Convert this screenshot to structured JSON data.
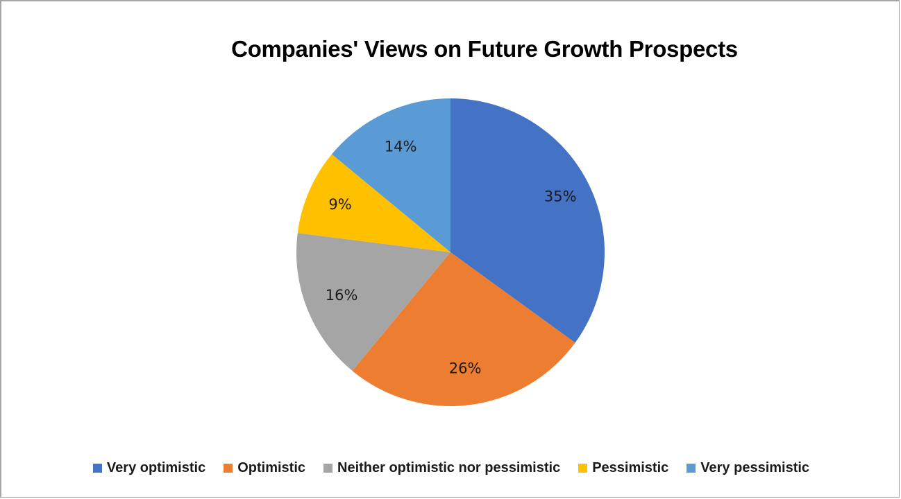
{
  "chart_data": {
    "type": "pie",
    "title": "Companies' Views on Future Growth Prospects",
    "categories": [
      "Very optimistic",
      "Optimistic",
      "Neither optimistic nor pessimistic",
      "Pessimistic",
      "Very pessimistic"
    ],
    "values": [
      35,
      26,
      16,
      9,
      14
    ],
    "labels": [
      "35%",
      "26%",
      "16%",
      "9%",
      "14%"
    ],
    "colors": [
      "#4472c4",
      "#ed7d31",
      "#a5a5a5",
      "#ffc000",
      "#5b9bd5"
    ],
    "start_angle": "12 o'clock",
    "direction": "clockwise",
    "legend_position": "bottom"
  },
  "legend": [
    {
      "label": "Very optimistic",
      "color": "#4472c4"
    },
    {
      "label": "Optimistic",
      "color": "#ed7d31"
    },
    {
      "label": "Neither optimistic nor pessimistic",
      "color": "#a5a5a5"
    },
    {
      "label": "Pessimistic",
      "color": "#ffc000"
    },
    {
      "label": "Very pessimistic",
      "color": "#5b9bd5"
    }
  ]
}
